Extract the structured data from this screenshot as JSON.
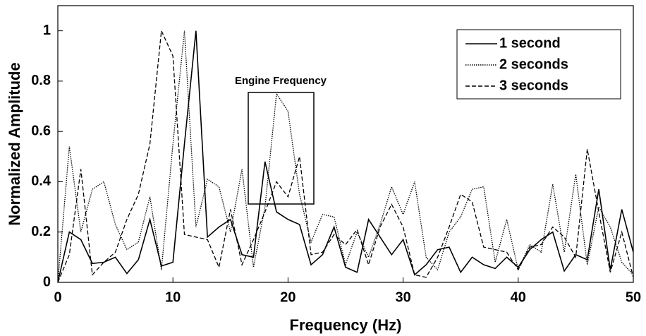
{
  "chart_data": {
    "type": "line",
    "xlabel": "Frequency (Hz)",
    "ylabel": "Normalized Amplitude",
    "annotation": "Engine Frequency",
    "x": [
      0,
      1,
      2,
      3,
      4,
      5,
      6,
      7,
      8,
      9,
      10,
      11,
      12,
      13,
      14,
      15,
      16,
      17,
      18,
      19,
      20,
      21,
      22,
      23,
      24,
      25,
      26,
      27,
      28,
      29,
      30,
      31,
      32,
      33,
      34,
      35,
      36,
      37,
      38,
      39,
      40,
      41,
      42,
      43,
      44,
      45,
      46,
      47,
      48,
      49,
      50
    ],
    "series": [
      {
        "name": "1 second",
        "color": "#000000",
        "dash": "solid",
        "values": [
          0,
          0.2,
          0.17,
          0.075,
          0.08,
          0.1,
          0.035,
          0.09,
          0.25,
          0.065,
          0.08,
          0.55,
          1.0,
          0.18,
          0.22,
          0.25,
          0.11,
          0.1,
          0.48,
          0.28,
          0.25,
          0.23,
          0.07,
          0.11,
          0.22,
          0.06,
          0.04,
          0.25,
          0.18,
          0.11,
          0.17,
          0.03,
          0.07,
          0.13,
          0.14,
          0.04,
          0.1,
          0.07,
          0.055,
          0.1,
          0.06,
          0.13,
          0.17,
          0.2,
          0.045,
          0.11,
          0.09,
          0.37,
          0.05,
          0.29,
          0.12
        ]
      },
      {
        "name": "2 seconds",
        "color": "#000000",
        "dash": "dotted",
        "values": [
          0,
          0.54,
          0.2,
          0.37,
          0.4,
          0.23,
          0.13,
          0.16,
          0.34,
          0.05,
          0.55,
          1.0,
          0.22,
          0.41,
          0.38,
          0.2,
          0.45,
          0.06,
          0.3,
          0.75,
          0.68,
          0.35,
          0.16,
          0.27,
          0.26,
          0.07,
          0.2,
          0.1,
          0.23,
          0.38,
          0.27,
          0.4,
          0.1,
          0.05,
          0.2,
          0.26,
          0.37,
          0.38,
          0.08,
          0.25,
          0.05,
          0.15,
          0.12,
          0.39,
          0.12,
          0.43,
          0.07,
          0.3,
          0.22,
          0.08,
          0.03
        ]
      },
      {
        "name": "3 seconds",
        "color": "#000000",
        "dash": "dashed",
        "values": [
          0,
          0.11,
          0.45,
          0.03,
          0.08,
          0.12,
          0.25,
          0.35,
          0.55,
          1.0,
          0.9,
          0.19,
          0.18,
          0.17,
          0.06,
          0.29,
          0.07,
          0.17,
          0.28,
          0.4,
          0.34,
          0.5,
          0.11,
          0.12,
          0.19,
          0.15,
          0.21,
          0.07,
          0.22,
          0.31,
          0.22,
          0.03,
          0.02,
          0.1,
          0.22,
          0.35,
          0.32,
          0.14,
          0.13,
          0.12,
          0.05,
          0.14,
          0.15,
          0.22,
          0.18,
          0.1,
          0.53,
          0.28,
          0.04,
          0.2,
          0.02
        ]
      }
    ],
    "xlim": [
      0,
      50
    ],
    "ylim": [
      0,
      1.1
    ],
    "xticks": [
      0,
      10,
      20,
      30,
      40,
      50
    ],
    "yticks": [
      0,
      0.2,
      0.4,
      0.6,
      0.8,
      1
    ],
    "legend": "upper right"
  }
}
